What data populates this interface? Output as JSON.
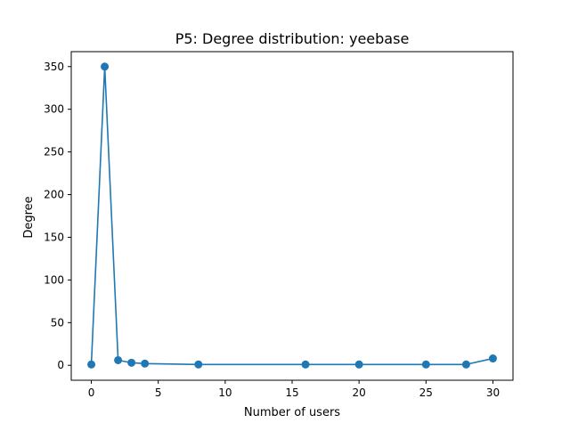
{
  "chart_data": {
    "type": "line",
    "title": "P5: Degree distribution: yeebase",
    "xlabel": "Number of users",
    "ylabel": "Degree",
    "xlim": [
      -1.5,
      31.5
    ],
    "ylim": [
      -17.5,
      367.5
    ],
    "xticks": [
      0,
      5,
      10,
      15,
      20,
      25,
      30
    ],
    "yticks": [
      0,
      50,
      100,
      150,
      200,
      250,
      300,
      350
    ],
    "grid": false,
    "series": [
      {
        "color": "#1f77b4",
        "marker": "circle",
        "x": [
          0,
          1,
          2,
          3,
          4,
          8,
          16,
          20,
          25,
          28,
          30
        ],
        "y": [
          1,
          350,
          6,
          3,
          2,
          1,
          1,
          1,
          1,
          1,
          8
        ]
      }
    ]
  }
}
